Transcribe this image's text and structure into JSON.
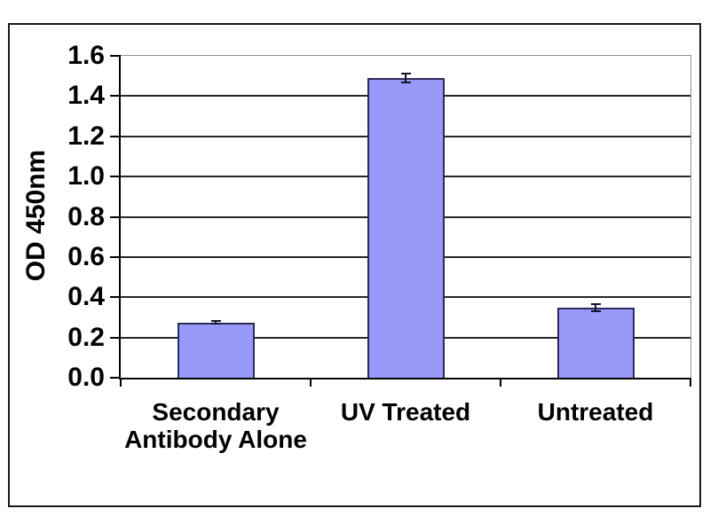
{
  "chart_data": {
    "type": "bar",
    "title": "",
    "ylabel": "OD 450nm",
    "xlabel": "",
    "categories": [
      "Secondary\nAntibody Alone",
      "UV Treated",
      "Untreated"
    ],
    "values": [
      0.275,
      1.49,
      0.35
    ],
    "errors": [
      0.006,
      0.022,
      0.018
    ],
    "yticks": [
      "0.0",
      "0.2",
      "0.4",
      "0.6",
      "0.8",
      "1.0",
      "1.2",
      "1.4",
      "1.6"
    ],
    "ylim": [
      0,
      1.6
    ],
    "grid": true,
    "legend": "none",
    "colors": {
      "bar_fill": "#9999FA",
      "bar_border": "#2B2B59",
      "gridline": "#262626",
      "axis": "#000000",
      "plot_border": "#8F8F8F",
      "error_bar": "#14142E",
      "frame_border": "#1A1A1A",
      "background": "#FFFFFF"
    }
  }
}
